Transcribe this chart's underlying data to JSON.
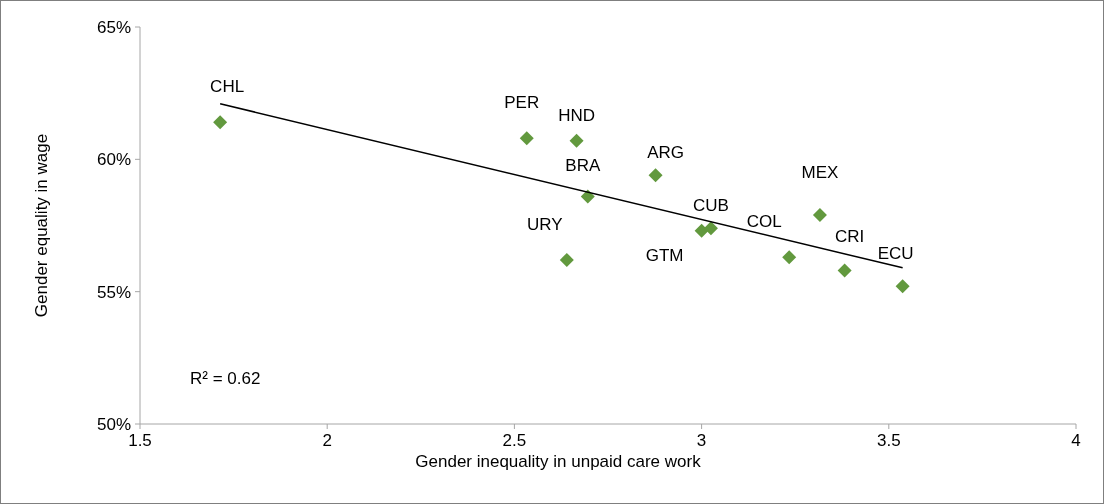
{
  "chart_data": {
    "type": "scatter",
    "xlabel": "Gender inequality in unpaid care work",
    "ylabel": "Gender equality in wage",
    "xlim": [
      1.5,
      4
    ],
    "xticks": [
      1.5,
      2,
      2.5,
      3,
      3.5,
      4
    ],
    "ylim": [
      50,
      65
    ],
    "yticks": [
      {
        "value": 50,
        "label": "50%"
      },
      {
        "value": 55,
        "label": "55%"
      },
      {
        "value": 60,
        "label": "60%"
      },
      {
        "value": 65,
        "label": "65%"
      }
    ],
    "grid": false,
    "marker": "diamond",
    "series": [
      {
        "color": "#62993e",
        "x": [
          1.714,
          2.533,
          2.666,
          2.696,
          2.64,
          2.877,
          3.0,
          3.025,
          3.316,
          3.234,
          3.382,
          3.537
        ],
        "values": [
          61.4,
          60.8,
          60.7,
          58.6,
          56.2,
          59.4,
          57.3,
          57.4,
          57.9,
          56.3,
          55.8,
          55.2
        ]
      },
      {
        "type": "line",
        "color": "#000000",
        "marker": "none",
        "x": [
          1.714,
          3.537
        ],
        "values": [
          62.1,
          55.9
        ]
      }
    ],
    "annotations": [
      {
        "text": "CHL",
        "x": 1.714,
        "y": 61.4
      },
      {
        "text": "PER",
        "x": 2.533,
        "y": 60.8
      },
      {
        "text": "HND",
        "x": 2.666,
        "y": 60.7
      },
      {
        "text": "BRA",
        "x": 2.696,
        "y": 58.6
      },
      {
        "text": "URY",
        "x": 2.64,
        "y": 56.2
      },
      {
        "text": "ARG",
        "x": 2.877,
        "y": 59.4
      },
      {
        "text": "GTM",
        "x": 3.0,
        "y": 57.3
      },
      {
        "text": "CUB",
        "x": 3.025,
        "y": 57.4
      },
      {
        "text": "MEX",
        "x": 3.316,
        "y": 57.9
      },
      {
        "text": "COL",
        "x": 3.234,
        "y": 56.3
      },
      {
        "text": "CRI",
        "x": 3.382,
        "y": 55.8
      },
      {
        "text": "ECU",
        "x": 3.537,
        "y": 55.2
      },
      "R² = 0.62"
    ]
  }
}
